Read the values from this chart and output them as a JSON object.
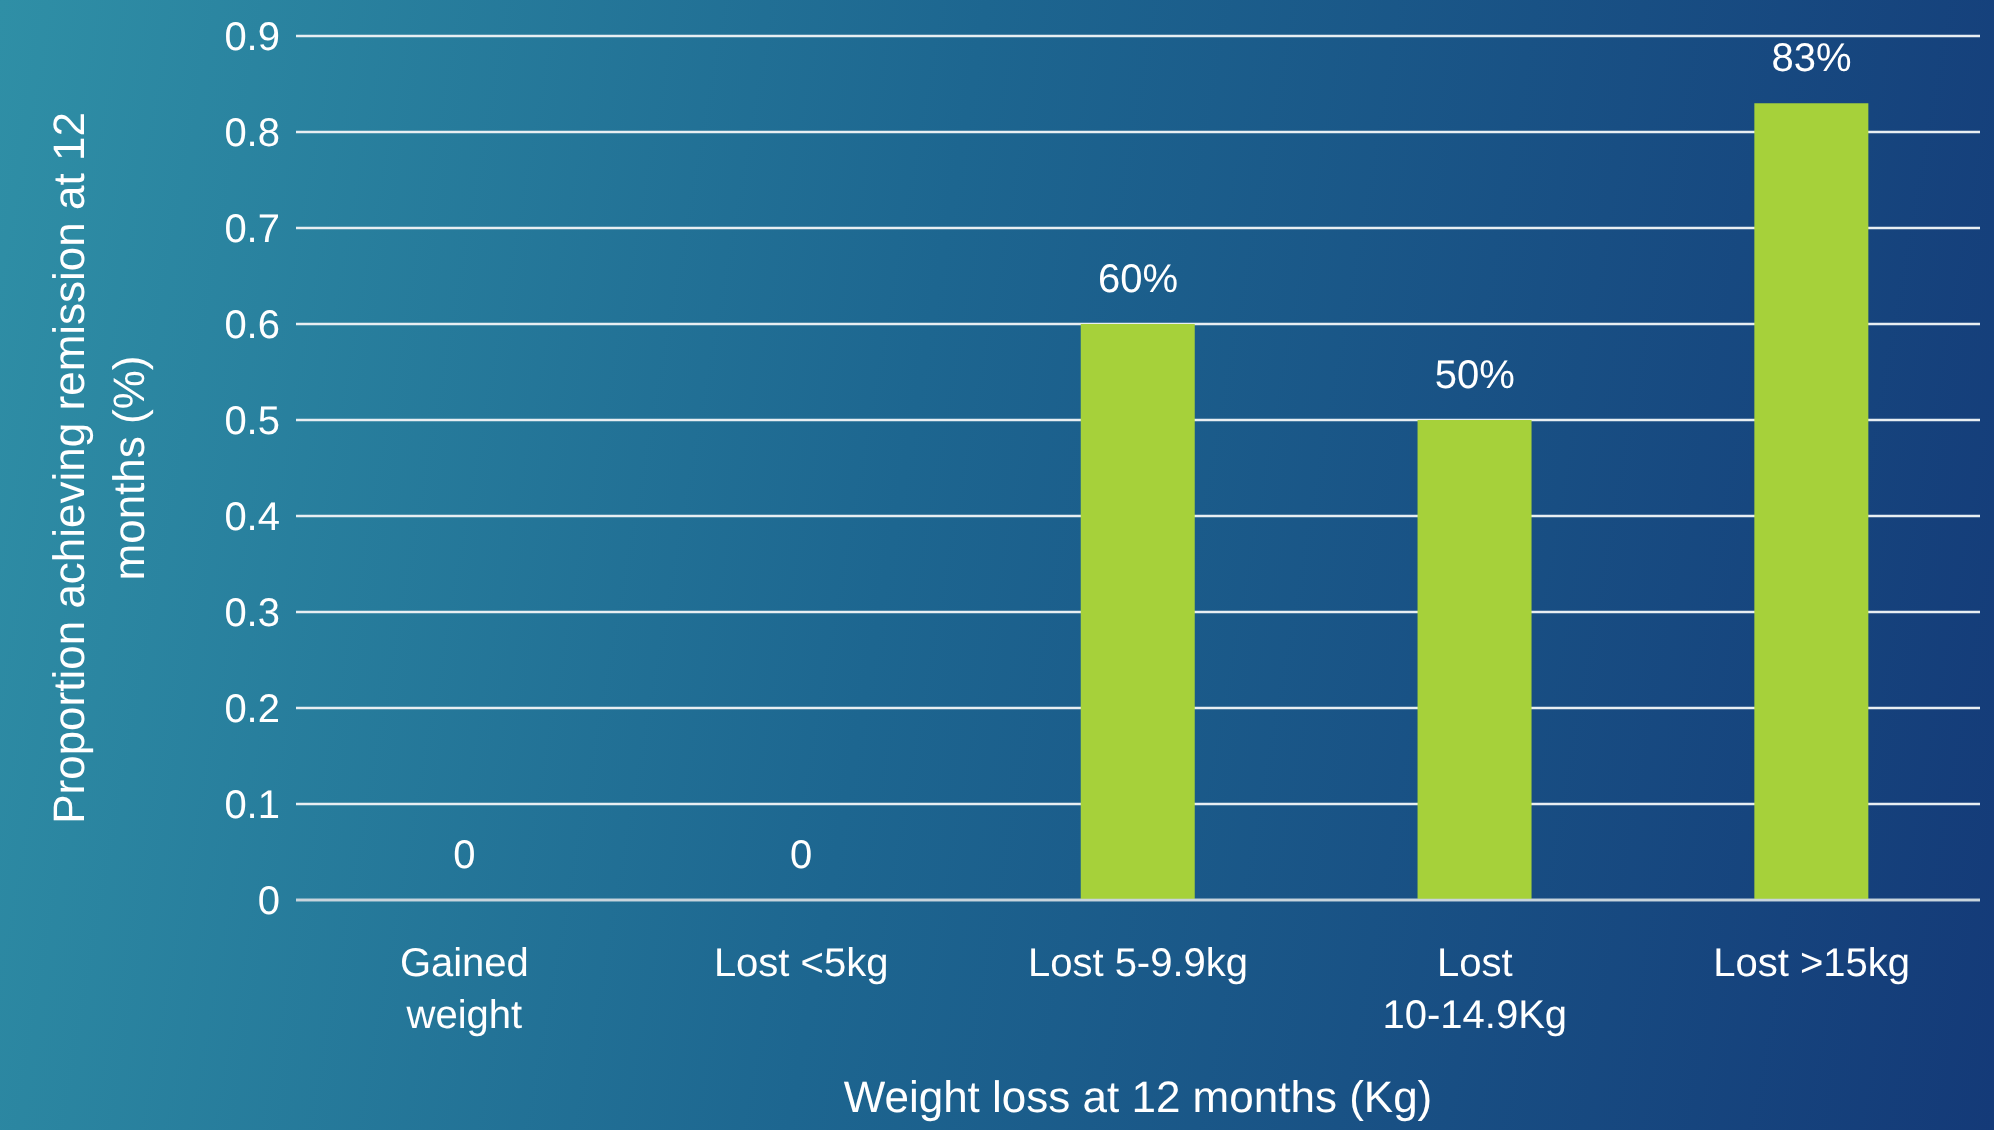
{
  "chart_data": {
    "type": "bar",
    "xlabel": "Weight loss at 12 months (Kg)",
    "ylabel": "Proportion achieving remission at 12 months (%)",
    "categories": [
      "Gained weight",
      "Lost <5kg",
      "Lost 5-9.9kg",
      "Lost 10-14.9Kg",
      "Lost >15kg"
    ],
    "values": [
      0,
      0,
      0.6,
      0.5,
      0.83
    ],
    "value_labels": [
      "0",
      "0",
      "60%",
      "50%",
      "83%"
    ],
    "color": "#a6d13a",
    "ylim": [
      0,
      0.9
    ],
    "yticks": [
      0,
      0.1,
      0.2,
      0.3,
      0.4,
      0.5,
      0.6,
      0.7,
      0.8,
      0.9
    ],
    "grid": "y",
    "legend": false
  }
}
